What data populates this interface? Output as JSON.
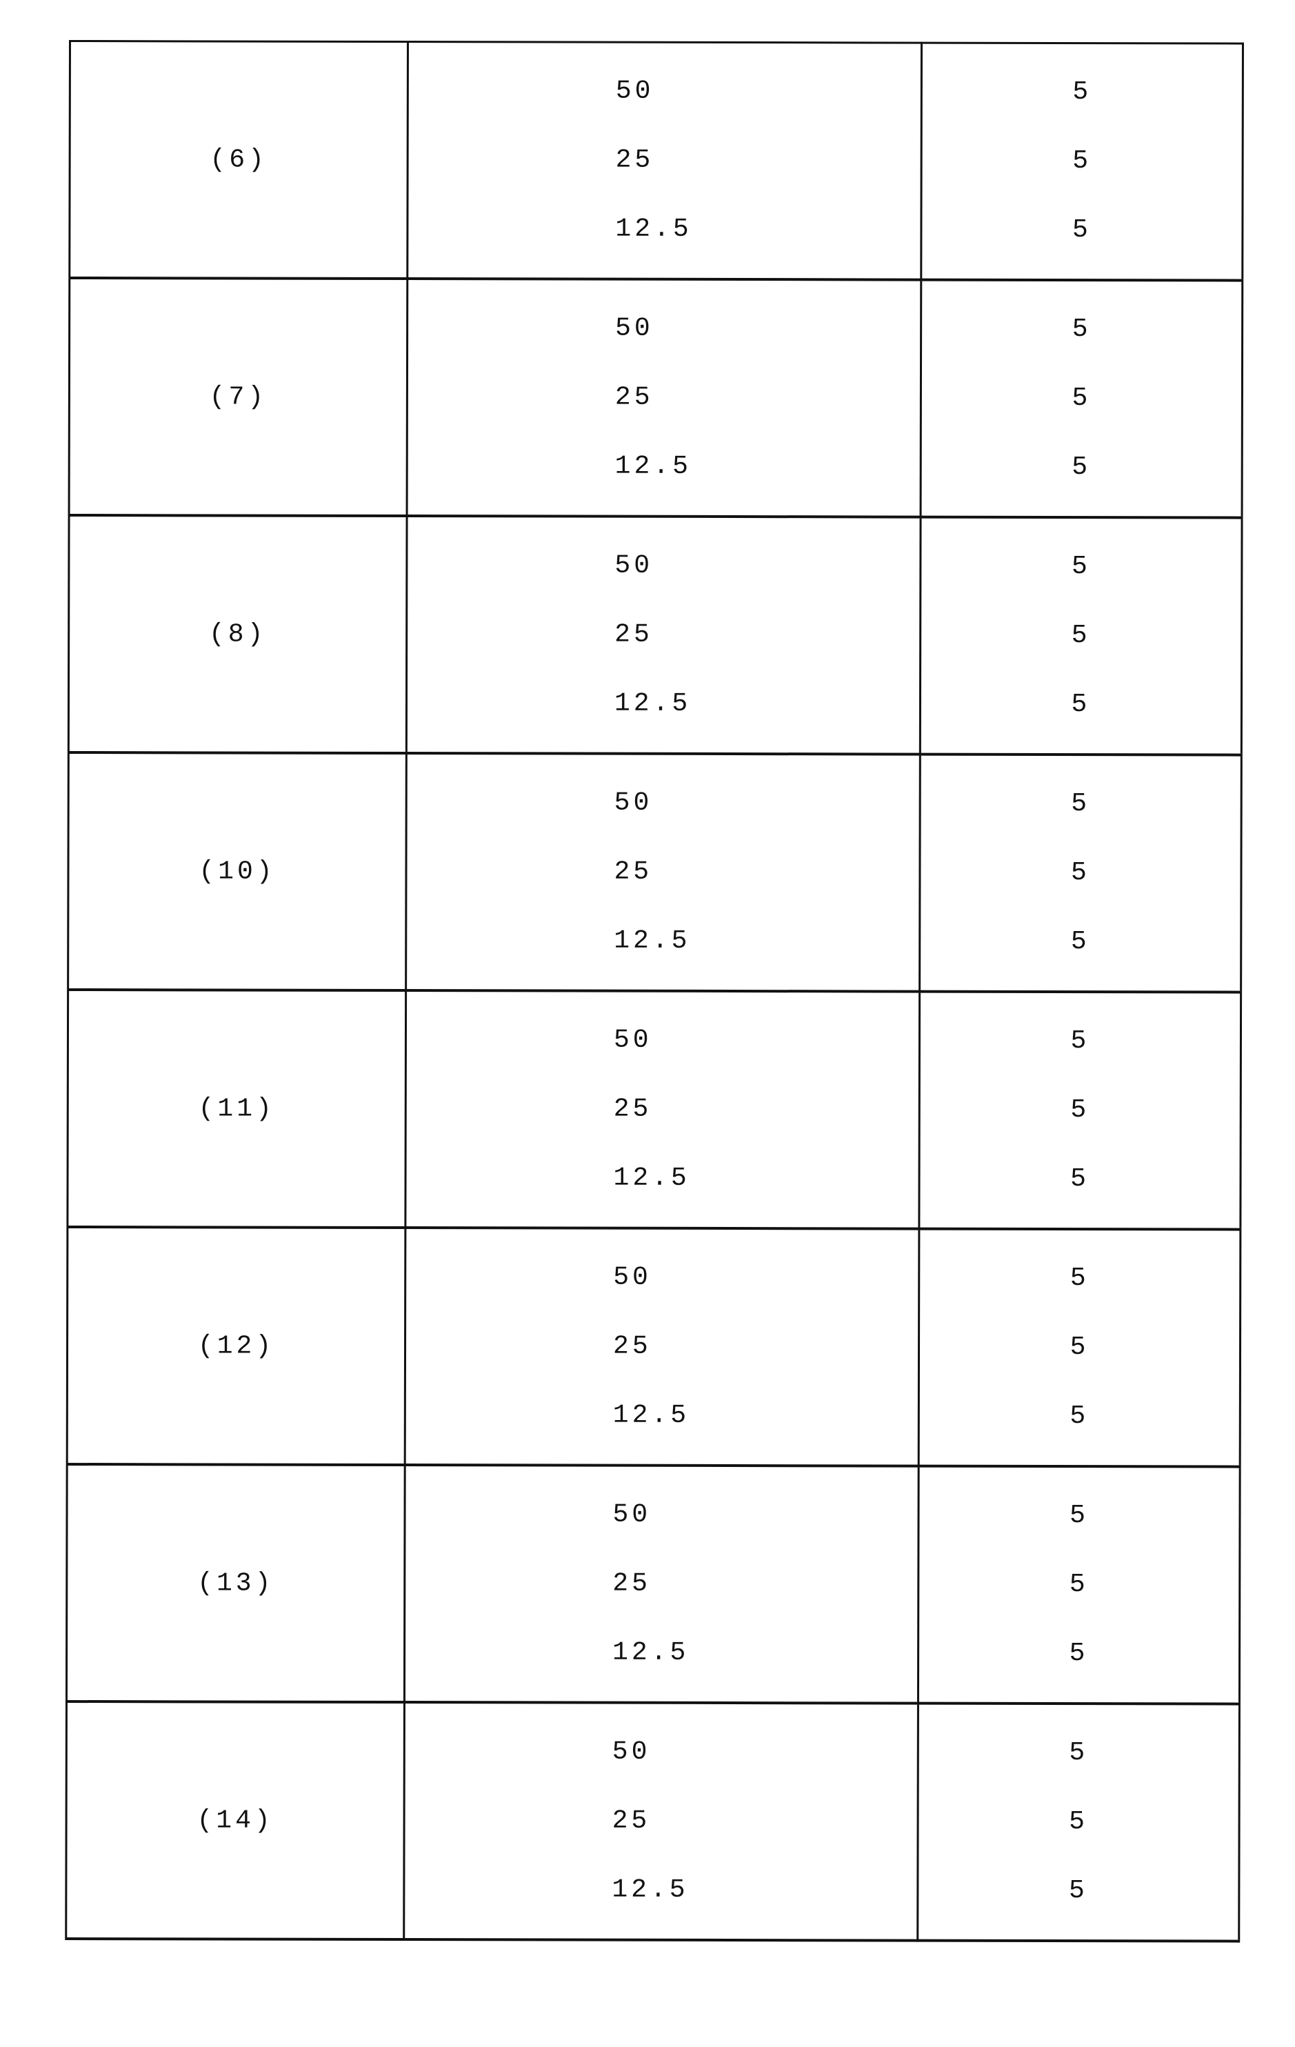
{
  "table": {
    "rows": [
      {
        "id": "(6)",
        "concentrations": [
          "50",
          "25",
          "12.5"
        ],
        "values": [
          "5",
          "5",
          "5"
        ]
      },
      {
        "id": "(7)",
        "concentrations": [
          "50",
          "25",
          "12.5"
        ],
        "values": [
          "5",
          "5",
          "5"
        ]
      },
      {
        "id": "(8)",
        "concentrations": [
          "50",
          "25",
          "12.5"
        ],
        "values": [
          "5",
          "5",
          "5"
        ]
      },
      {
        "id": "(10)",
        "concentrations": [
          "50",
          "25",
          "12.5"
        ],
        "values": [
          "5",
          "5",
          "5"
        ]
      },
      {
        "id": "(11)",
        "concentrations": [
          "50",
          "25",
          "12.5"
        ],
        "values": [
          "5",
          "5",
          "5"
        ]
      },
      {
        "id": "(12)",
        "concentrations": [
          "50",
          "25",
          "12.5"
        ],
        "values": [
          "5",
          "5",
          "5"
        ]
      },
      {
        "id": "(13)",
        "concentrations": [
          "50",
          "25",
          "12.5"
        ],
        "values": [
          "5",
          "5",
          "5"
        ]
      },
      {
        "id": "(14)",
        "concentrations": [
          "50",
          "25",
          "12.5"
        ],
        "values": [
          "5",
          "5",
          "5"
        ]
      }
    ]
  }
}
